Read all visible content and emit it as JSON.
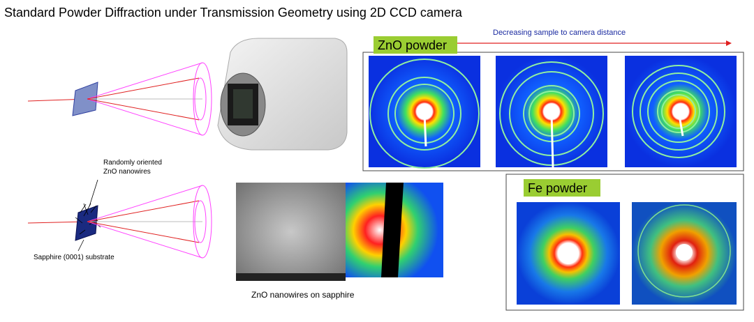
{
  "title": "Standard Powder Diffraction under Transmission Geometry using 2D CCD camera",
  "zno_panel": {
    "label": "ZnO powder",
    "arrow_label": "Decreasing sample to camera distance"
  },
  "nanowire_setup": {
    "label_lines": [
      "Randomly oriented",
      "ZnO nanowires"
    ],
    "substrate_label": "Sapphire (0001) substrate"
  },
  "nanowire_caption": "ZnO nanowires on sapphire",
  "fe_panel": {
    "label": "Fe powder"
  }
}
